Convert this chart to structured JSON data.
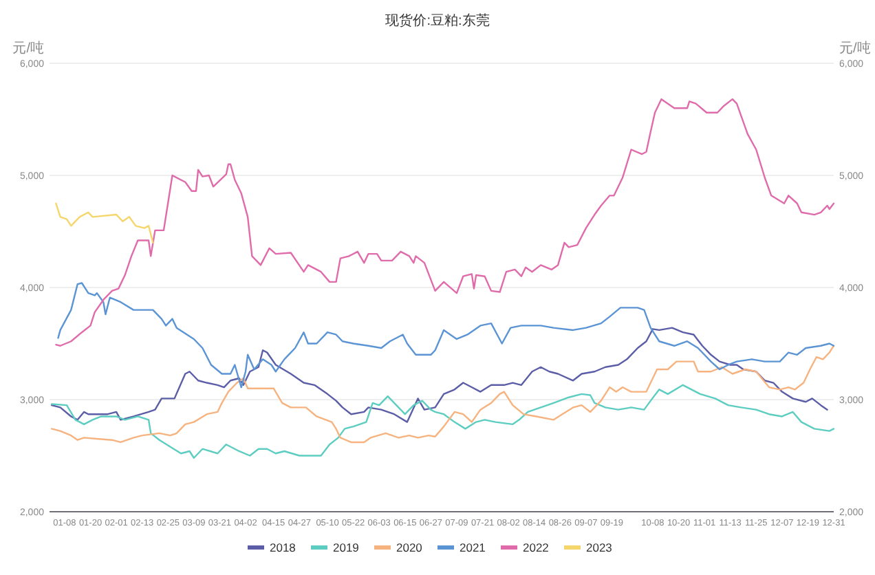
{
  "chart_data": {
    "type": "line",
    "title": "现货价:豆粕:东莞",
    "ylabel": "元/吨",
    "y2label": "元/吨",
    "xlim": [
      "--01-01",
      "--12-31"
    ],
    "xticks": [
      {
        "value": "--01-08",
        "label": "01-08"
      },
      {
        "value": "--01-20",
        "label": "01-20"
      },
      {
        "value": "--02-01",
        "label": "02-01"
      },
      {
        "value": "--02-13",
        "label": "02-13"
      },
      {
        "value": "--02-25",
        "label": "02-25"
      },
      {
        "value": "--03-09",
        "label": "03-09"
      },
      {
        "value": "--03-21",
        "label": "03-21"
      },
      {
        "value": "--04-02",
        "label": "04-02"
      },
      {
        "value": "--04-15",
        "label": "04-15"
      },
      {
        "value": "--04-27",
        "label": "04-27"
      },
      {
        "value": "--05-10",
        "label": "05-10"
      },
      {
        "value": "--05-22",
        "label": "05-22"
      },
      {
        "value": "--06-03",
        "label": "06-03"
      },
      {
        "value": "--06-15",
        "label": "06-15"
      },
      {
        "value": "--06-27",
        "label": "06-27"
      },
      {
        "value": "--07-09",
        "label": "07-09"
      },
      {
        "value": "--07-21",
        "label": "07-21"
      },
      {
        "value": "--08-02",
        "label": "08-02"
      },
      {
        "value": "--08-14",
        "label": "08-14"
      },
      {
        "value": "--08-26",
        "label": "08-26"
      },
      {
        "value": "--09-07",
        "label": "09-07"
      },
      {
        "value": "--09-19",
        "label": "09-19"
      },
      {
        "value": "--10-08",
        "label": "10-08"
      },
      {
        "value": "--10-20",
        "label": "10-20"
      },
      {
        "value": "--11-01",
        "label": "11-01"
      },
      {
        "value": "--11-13",
        "label": "11-13"
      },
      {
        "value": "--11-25",
        "label": "11-25"
      },
      {
        "value": "--12-07",
        "label": "12-07"
      },
      {
        "value": "--12-19",
        "label": "12-19"
      },
      {
        "value": "--12-31",
        "label": "12-31"
      }
    ],
    "ylim": [
      2000,
      6000
    ],
    "yticks": [
      {
        "value": 2000,
        "label": "2,000"
      },
      {
        "value": 3000,
        "label": "3,000"
      },
      {
        "value": 4000,
        "label": "4,000"
      },
      {
        "value": 5000,
        "label": "5,000"
      },
      {
        "value": 6000,
        "label": "6,000"
      }
    ],
    "y2lim": [
      2000,
      6000
    ],
    "y2ticks": [
      {
        "value": 2000,
        "label": "2,000"
      },
      {
        "value": 3000,
        "label": "3,000"
      },
      {
        "value": 4000,
        "label": "4,000"
      },
      {
        "value": 5000,
        "label": "5,000"
      },
      {
        "value": 6000,
        "label": "6,000"
      }
    ],
    "grid": "y",
    "legend": "bottom",
    "series": [
      {
        "name": "2018",
        "color": "#5b5ea6",
        "x": [
          "--01-02",
          "--01-06",
          "--01-11",
          "--01-14",
          "--01-17",
          "--01-19",
          "--01-28",
          "--02-01",
          "--02-03",
          "--02-09",
          "--02-16",
          "--02-19",
          "--02-22",
          "--02-28",
          "--03-05",
          "--03-07",
          "--03-11",
          "--03-15",
          "--03-20",
          "--03-23",
          "--03-26",
          "--03-30",
          "--04-01",
          "--04-04",
          "--04-08",
          "--04-10",
          "--04-12",
          "--04-16",
          "--04-23",
          "--04-29",
          "--05-04",
          "--05-10",
          "--05-14",
          "--05-17",
          "--05-21",
          "--05-27",
          "--05-29",
          "--06-04",
          "--06-10",
          "--06-16",
          "--06-21",
          "--06-24",
          "--06-29",
          "--07-03",
          "--07-08",
          "--07-12",
          "--07-16",
          "--07-20",
          "--07-25",
          "--07-31",
          "--08-04",
          "--08-08",
          "--08-13",
          "--08-17",
          "--08-21",
          "--08-25",
          "--09-01",
          "--09-05",
          "--09-11",
          "--09-16",
          "--09-22",
          "--09-26",
          "--10-01",
          "--10-05",
          "--10-08",
          "--10-11",
          "--10-17",
          "--10-22",
          "--10-27",
          "--10-31",
          "--11-04",
          "--11-08",
          "--11-13",
          "--11-16",
          "--11-19",
          "--11-25",
          "--11-29",
          "--12-03",
          "--12-07",
          "--12-12",
          "--12-18",
          "--12-21",
          "--12-25",
          "--12-28"
        ],
        "values": [
          2950,
          2930,
          2850,
          2820,
          2890,
          2870,
          2870,
          2890,
          2820,
          2850,
          2890,
          2910,
          3010,
          3010,
          3230,
          3250,
          3170,
          3150,
          3130,
          3110,
          3170,
          3190,
          3130,
          3250,
          3290,
          3440,
          3420,
          3310,
          3230,
          3150,
          3130,
          3050,
          2990,
          2930,
          2870,
          2890,
          2930,
          2910,
          2870,
          2800,
          3010,
          2910,
          2930,
          3050,
          3090,
          3150,
          3110,
          3070,
          3130,
          3130,
          3150,
          3130,
          3250,
          3290,
          3250,
          3230,
          3170,
          3230,
          3250,
          3290,
          3310,
          3360,
          3460,
          3520,
          3630,
          3620,
          3640,
          3600,
          3580,
          3480,
          3400,
          3340,
          3310,
          3310,
          3270,
          3250,
          3170,
          3150,
          3070,
          3010,
          2980,
          3010,
          2950,
          2910
        ]
      },
      {
        "name": "2019",
        "color": "#5ccdc0",
        "x": [
          "--01-02",
          "--01-09",
          "--01-13",
          "--01-17",
          "--01-21",
          "--01-25",
          "--02-01",
          "--02-05",
          "--02-11",
          "--02-16",
          "--02-17",
          "--02-21",
          "--02-26",
          "--03-03",
          "--03-07",
          "--03-09",
          "--03-13",
          "--03-20",
          "--03-24",
          "--03-30",
          "--04-04",
          "--04-08",
          "--04-12",
          "--04-16",
          "--04-20",
          "--04-27",
          "--05-07",
          "--05-11",
          "--05-15",
          "--05-18",
          "--05-22",
          "--05-28",
          "--05-31",
          "--06-03",
          "--06-07",
          "--06-10",
          "--06-15",
          "--06-19",
          "--06-23",
          "--06-27",
          "--06-29",
          "--07-03",
          "--07-08",
          "--07-13",
          "--07-18",
          "--07-22",
          "--07-27",
          "--08-04",
          "--08-07",
          "--08-11",
          "--08-17",
          "--08-23",
          "--08-30",
          "--09-05",
          "--09-09",
          "--09-11",
          "--09-16",
          "--09-22",
          "--09-28",
          "--10-04",
          "--10-07",
          "--10-11",
          "--10-15",
          "--10-22",
          "--10-26",
          "--10-30",
          "--11-06",
          "--11-12",
          "--11-18",
          "--11-25",
          "--12-01",
          "--12-07",
          "--12-12",
          "--12-16",
          "--12-22",
          "--12-29",
          "--12-31"
        ],
        "values": [
          2960,
          2950,
          2820,
          2780,
          2820,
          2850,
          2850,
          2820,
          2850,
          2820,
          2700,
          2640,
          2580,
          2520,
          2540,
          2480,
          2560,
          2520,
          2600,
          2540,
          2500,
          2560,
          2560,
          2520,
          2540,
          2500,
          2500,
          2600,
          2660,
          2740,
          2760,
          2800,
          2970,
          2950,
          3030,
          2970,
          2870,
          2950,
          2990,
          2910,
          2890,
          2870,
          2800,
          2740,
          2800,
          2820,
          2800,
          2780,
          2820,
          2890,
          2930,
          2970,
          3020,
          3050,
          3040,
          2970,
          2930,
          2910,
          2930,
          2910,
          2990,
          3090,
          3050,
          3130,
          3090,
          3050,
          3010,
          2950,
          2930,
          2910,
          2870,
          2850,
          2890,
          2800,
          2740,
          2720,
          2740
        ]
      },
      {
        "name": "2020",
        "color": "#f6b37f",
        "x": [
          "--01-02",
          "--01-06",
          "--01-11",
          "--01-14",
          "--01-17",
          "--01-23",
          "--01-30",
          "--02-03",
          "--02-09",
          "--02-13",
          "--02-21",
          "--02-26",
          "--03-01",
          "--03-05",
          "--03-09",
          "--03-15",
          "--03-20",
          "--03-22",
          "--03-25",
          "--03-29",
          "--04-01",
          "--04-03",
          "--04-08",
          "--04-15",
          "--04-19",
          "--04-23",
          "--04-30",
          "--05-05",
          "--05-12",
          "--05-14",
          "--05-16",
          "--05-21",
          "--05-27",
          "--05-30",
          "--06-06",
          "--06-12",
          "--06-17",
          "--06-21",
          "--06-26",
          "--06-29",
          "--07-03",
          "--07-08",
          "--07-12",
          "--07-16",
          "--07-20",
          "--07-25",
          "--07-29",
          "--07-31",
          "--08-04",
          "--08-09",
          "--08-15",
          "--08-23",
          "--08-27",
          "--09-01",
          "--09-05",
          "--09-09",
          "--09-14",
          "--09-18",
          "--09-21",
          "--09-24",
          "--09-28",
          "--10-05",
          "--10-10",
          "--10-15",
          "--10-19",
          "--10-27",
          "--10-29",
          "--11-04",
          "--11-09",
          "--11-14",
          "--11-20",
          "--11-25",
          "--12-01",
          "--12-06",
          "--12-10",
          "--12-13",
          "--12-17",
          "--12-20",
          "--12-23",
          "--12-26",
          "--12-29",
          "--12-31"
        ],
        "values": [
          2740,
          2720,
          2680,
          2640,
          2660,
          2650,
          2640,
          2620,
          2660,
          2680,
          2700,
          2680,
          2700,
          2780,
          2800,
          2870,
          2890,
          2970,
          3070,
          3150,
          3190,
          3100,
          3100,
          3100,
          2970,
          2930,
          2930,
          2850,
          2800,
          2740,
          2660,
          2620,
          2620,
          2660,
          2700,
          2660,
          2680,
          2660,
          2680,
          2670,
          2760,
          2890,
          2870,
          2800,
          2910,
          2970,
          3050,
          3070,
          2950,
          2870,
          2850,
          2820,
          2870,
          2930,
          2950,
          2890,
          2990,
          3110,
          3070,
          3110,
          3070,
          3070,
          3270,
          3270,
          3340,
          3340,
          3250,
          3250,
          3290,
          3230,
          3270,
          3250,
          3110,
          3090,
          3110,
          3090,
          3150,
          3270,
          3380,
          3360,
          3420,
          3480
        ]
      },
      {
        "name": "2021",
        "color": "#5b94d5",
        "x": [
          "--01-05",
          "--01-06",
          "--01-11",
          "--01-14",
          "--01-16",
          "--01-19",
          "--01-22",
          "--01-23",
          "--01-26",
          "--01-27",
          "--01-29",
          "--02-03",
          "--02-09",
          "--02-18",
          "--02-22",
          "--02-24",
          "--02-27",
          "--03-01",
          "--03-09",
          "--03-13",
          "--03-17",
          "--03-22",
          "--03-26",
          "--03-28",
          "--03-31",
          "--04-02",
          "--04-03",
          "--04-06",
          "--04-10",
          "--04-14",
          "--04-16",
          "--04-20",
          "--04-25",
          "--04-29",
          "--05-01",
          "--05-05",
          "--05-10",
          "--05-14",
          "--05-17",
          "--05-22",
          "--05-29",
          "--06-04",
          "--06-08",
          "--06-14",
          "--06-16",
          "--06-20",
          "--06-27",
          "--06-29",
          "--07-03",
          "--07-09",
          "--07-14",
          "--07-20",
          "--07-25",
          "--07-30",
          "--08-03",
          "--08-08",
          "--08-17",
          "--08-23",
          "--09-01",
          "--09-07",
          "--09-14",
          "--09-18",
          "--09-23",
          "--10-01",
          "--10-04",
          "--10-07",
          "--10-11",
          "--10-18",
          "--10-24",
          "--10-29",
          "--11-04",
          "--11-08",
          "--11-12",
          "--11-16",
          "--11-23",
          "--11-29",
          "--12-06",
          "--12-10",
          "--12-14",
          "--12-18",
          "--12-25",
          "--12-29",
          "--12-31"
        ],
        "values": [
          3550,
          3620,
          3800,
          4030,
          4040,
          3950,
          3930,
          3950,
          3870,
          3760,
          3910,
          3870,
          3800,
          3800,
          3720,
          3660,
          3720,
          3640,
          3540,
          3460,
          3310,
          3230,
          3230,
          3310,
          3110,
          3250,
          3400,
          3270,
          3360,
          3310,
          3250,
          3360,
          3460,
          3600,
          3500,
          3500,
          3600,
          3580,
          3520,
          3500,
          3480,
          3460,
          3520,
          3580,
          3500,
          3400,
          3400,
          3440,
          3620,
          3540,
          3580,
          3660,
          3680,
          3500,
          3640,
          3660,
          3660,
          3640,
          3620,
          3640,
          3680,
          3740,
          3820,
          3820,
          3800,
          3640,
          3520,
          3480,
          3520,
          3460,
          3340,
          3270,
          3310,
          3340,
          3360,
          3340,
          3340,
          3420,
          3400,
          3460,
          3480,
          3500,
          3480
        ]
      },
      {
        "name": "2022",
        "color": "#e06bab",
        "x": [
          "--01-04",
          "--01-06",
          "--01-11",
          "--01-16",
          "--01-20",
          "--01-22",
          "--01-26",
          "--01-30",
          "--02-02",
          "--02-05",
          "--02-08",
          "--02-11",
          "--02-16",
          "--02-17",
          "--02-19",
          "--02-23",
          "--02-27",
          "--03-05",
          "--03-08",
          "--03-10",
          "--03-11",
          "--03-13",
          "--03-16",
          "--03-18",
          "--03-24",
          "--03-25",
          "--03-26",
          "--03-28",
          "--03-31",
          "--04-03",
          "--04-05",
          "--04-09",
          "--04-13",
          "--04-16",
          "--04-23",
          "--04-29",
          "--05-01",
          "--05-07",
          "--05-11",
          "--05-14",
          "--05-16",
          "--05-20",
          "--05-24",
          "--05-27",
          "--05-29",
          "--06-02",
          "--06-04",
          "--06-09",
          "--06-13",
          "--06-17",
          "--06-19",
          "--06-20",
          "--06-24",
          "--06-29",
          "--07-03",
          "--07-09",
          "--07-12",
          "--07-16",
          "--07-17",
          "--07-18",
          "--07-22",
          "--07-25",
          "--07-29",
          "--08-01",
          "--08-05",
          "--08-08",
          "--08-10",
          "--08-13",
          "--08-17",
          "--08-22",
          "--08-25",
          "--08-28",
          "--08-30",
          "--09-03",
          "--09-07",
          "--09-11",
          "--09-14",
          "--09-18",
          "--09-20",
          "--09-24",
          "--09-28",
          "--10-03",
          "--10-05",
          "--10-07",
          "--10-09",
          "--10-12",
          "--10-18",
          "--10-24",
          "--10-25",
          "--10-28",
          "--11-02",
          "--11-07",
          "--11-10",
          "--11-14",
          "--11-16",
          "--11-21",
          "--11-25",
          "--11-29",
          "--12-02",
          "--12-08",
          "--12-10",
          "--12-14",
          "--12-16",
          "--12-22",
          "--12-25",
          "--12-28",
          "--12-29",
          "--12-31"
        ],
        "values": [
          3490,
          3480,
          3520,
          3600,
          3660,
          3780,
          3890,
          3970,
          3990,
          4110,
          4280,
          4420,
          4420,
          4280,
          4510,
          4510,
          5000,
          4940,
          4860,
          4860,
          5050,
          4990,
          5000,
          4900,
          5010,
          5100,
          5100,
          4960,
          4840,
          4630,
          4280,
          4200,
          4350,
          4300,
          4310,
          4140,
          4200,
          4140,
          4050,
          4050,
          4260,
          4280,
          4320,
          4220,
          4300,
          4300,
          4240,
          4240,
          4320,
          4280,
          4220,
          4280,
          4220,
          3970,
          4050,
          3950,
          4100,
          4120,
          3990,
          4110,
          4100,
          3970,
          3960,
          4140,
          4160,
          4100,
          4180,
          4140,
          4200,
          4160,
          4200,
          4400,
          4360,
          4380,
          4530,
          4650,
          4730,
          4820,
          4820,
          4980,
          5230,
          5190,
          5210,
          5390,
          5560,
          5680,
          5600,
          5600,
          5660,
          5640,
          5560,
          5560,
          5620,
          5680,
          5640,
          5370,
          5230,
          4980,
          4820,
          4750,
          4820,
          4750,
          4670,
          4650,
          4670,
          4730,
          4700,
          4750
        ]
      },
      {
        "name": "2023",
        "color": "#f5d66b",
        "x": [
          "--01-04",
          "--01-06",
          "--01-09",
          "--01-11",
          "--01-15",
          "--01-19",
          "--01-21",
          "--02-01",
          "--02-04",
          "--02-07",
          "--02-10",
          "--02-14",
          "--02-16",
          "--02-18"
        ],
        "values": [
          4750,
          4630,
          4610,
          4550,
          4630,
          4670,
          4630,
          4650,
          4590,
          4630,
          4550,
          4530,
          4550,
          4400
        ]
      }
    ]
  }
}
